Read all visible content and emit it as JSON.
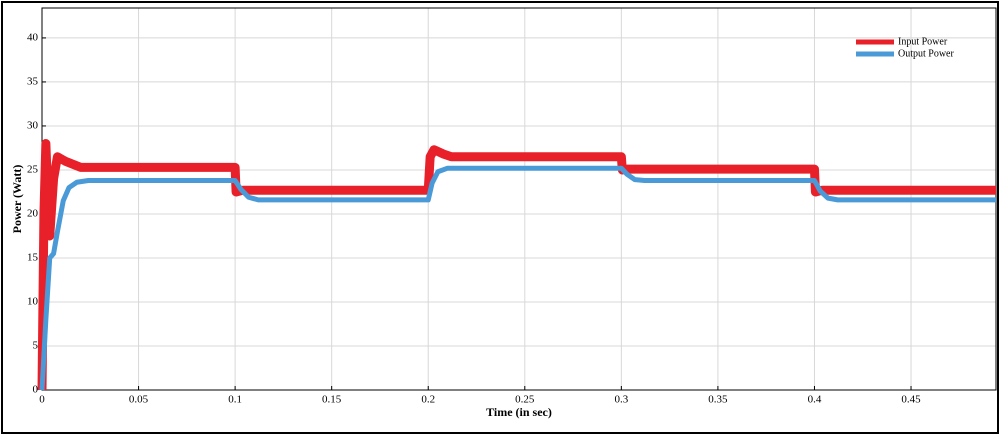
{
  "chart_data": {
    "type": "line",
    "xlabel": "Time (in sec)",
    "ylabel": "Power (Watt)",
    "xlim": [
      0,
      0.494
    ],
    "ylim": [
      0,
      43.4
    ],
    "xticks": [
      0,
      0.05,
      0.1,
      0.15,
      0.2,
      0.25,
      0.3,
      0.35,
      0.4,
      0.45
    ],
    "yticks": [
      0,
      5,
      10,
      15,
      20,
      25,
      30,
      35,
      40
    ],
    "grid": true,
    "legend": "upper right",
    "series": [
      {
        "name": "Input Power",
        "color": "#e8202a",
        "x": [
          0,
          0.001,
          0.002,
          0.003,
          0.004,
          0.006,
          0.008,
          0.012,
          0.02,
          0.1,
          0.1005,
          0.104,
          0.2,
          0.201,
          0.203,
          0.208,
          0.212,
          0.3,
          0.3005,
          0.303,
          0.4,
          0.4005,
          0.404,
          0.494
        ],
        "values": [
          0,
          20,
          28,
          22,
          17.5,
          24,
          26.5,
          26,
          25.3,
          25.3,
          22.5,
          22.7,
          22.7,
          26.5,
          27.3,
          26.8,
          26.5,
          26.5,
          25,
          25.1,
          25.1,
          22.5,
          22.7,
          22.7
        ]
      },
      {
        "name": "Output Power",
        "color": "#4a9ad8",
        "x": [
          0,
          0.002,
          0.004,
          0.006,
          0.008,
          0.011,
          0.014,
          0.018,
          0.024,
          0.1,
          0.103,
          0.107,
          0.112,
          0.2,
          0.202,
          0.205,
          0.21,
          0.3,
          0.303,
          0.307,
          0.312,
          0.4,
          0.403,
          0.407,
          0.412,
          0.494
        ],
        "values": [
          0,
          8,
          15,
          15.5,
          18,
          21.5,
          23,
          23.6,
          23.8,
          23.8,
          22.8,
          21.9,
          21.6,
          21.6,
          23.5,
          24.8,
          25.2,
          25.2,
          24.5,
          23.9,
          23.8,
          23.8,
          22.6,
          21.8,
          21.6,
          21.6
        ]
      }
    ]
  }
}
